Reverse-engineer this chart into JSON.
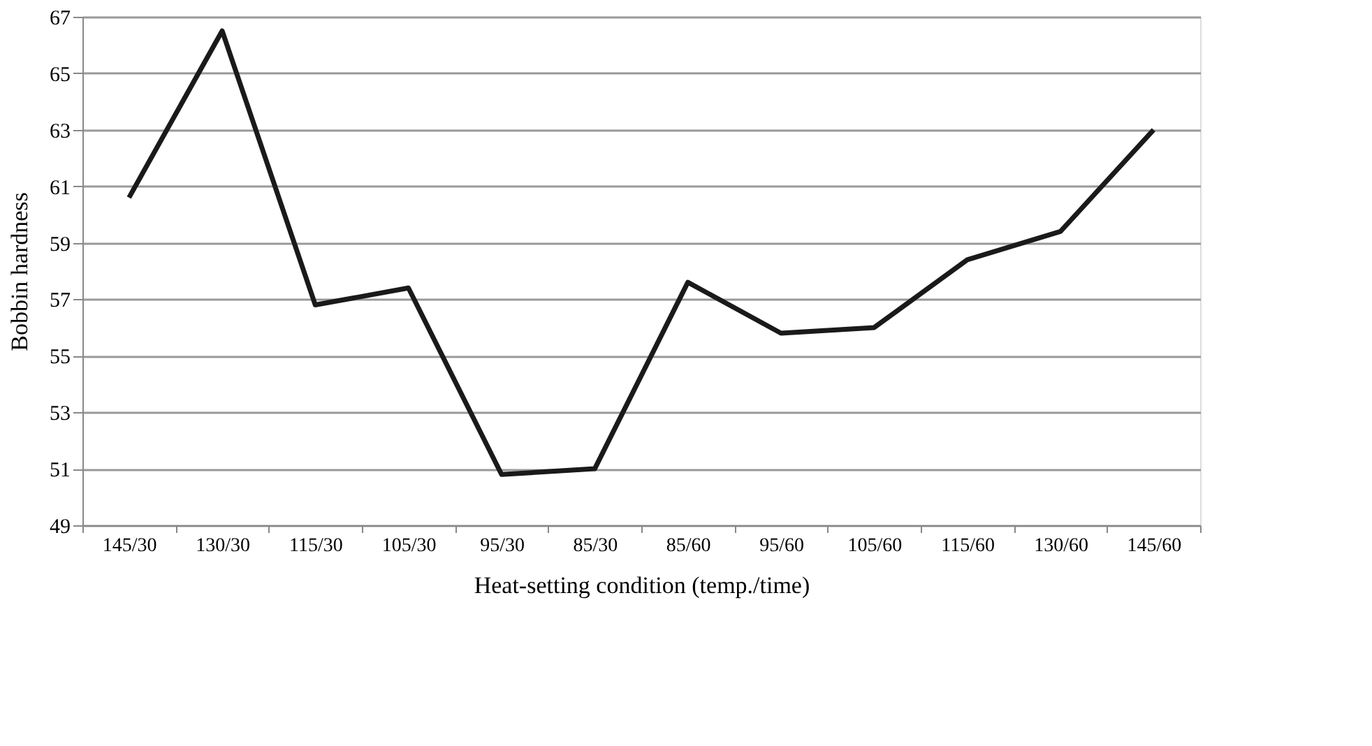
{
  "chart_data": {
    "type": "line",
    "xlabel": "Heat-setting  condition (temp./time)",
    "ylabel": "Bobbin hardness",
    "categories": [
      "145/30",
      "130/30",
      "115/30",
      "105/30",
      "95/30",
      "85/30",
      "85/60",
      "95/60",
      "105/60",
      "115/60",
      "130/60",
      "145/60"
    ],
    "series": [
      {
        "color": "#1a1a1a",
        "values": [
          60.6,
          66.5,
          56.8,
          57.4,
          50.8,
          51.0,
          57.6,
          55.8,
          56.0,
          58.4,
          59.4,
          63.0
        ]
      }
    ],
    "ylim": [
      49,
      67
    ],
    "yticks": [
      49,
      51,
      53,
      55,
      57,
      59,
      61,
      63,
      65,
      67
    ],
    "grid": "y",
    "marker": "none",
    "line_style": "solid"
  }
}
